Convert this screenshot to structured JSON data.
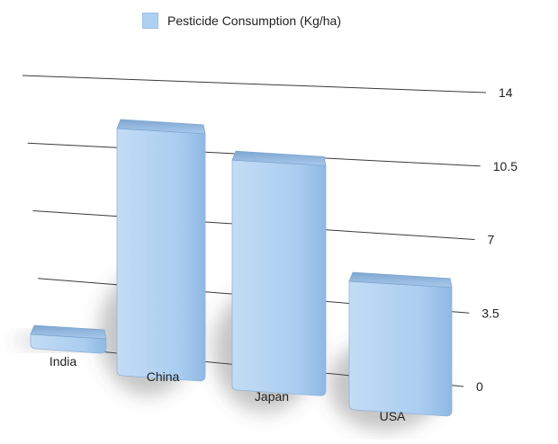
{
  "chart_data": {
    "type": "bar",
    "categories": [
      "India",
      "China",
      "Japan",
      "USA"
    ],
    "series": [
      {
        "name": "Pesticide Consumption (Kg/ha)",
        "values": [
          0.6,
          13.1,
          12.2,
          6.9
        ]
      }
    ],
    "ylim": [
      0,
      14
    ],
    "yticks": [
      "0",
      "3.5",
      "7",
      "10.5",
      "14"
    ],
    "grid": true,
    "legend_position": "top",
    "bar_color": "#aed0f2"
  }
}
